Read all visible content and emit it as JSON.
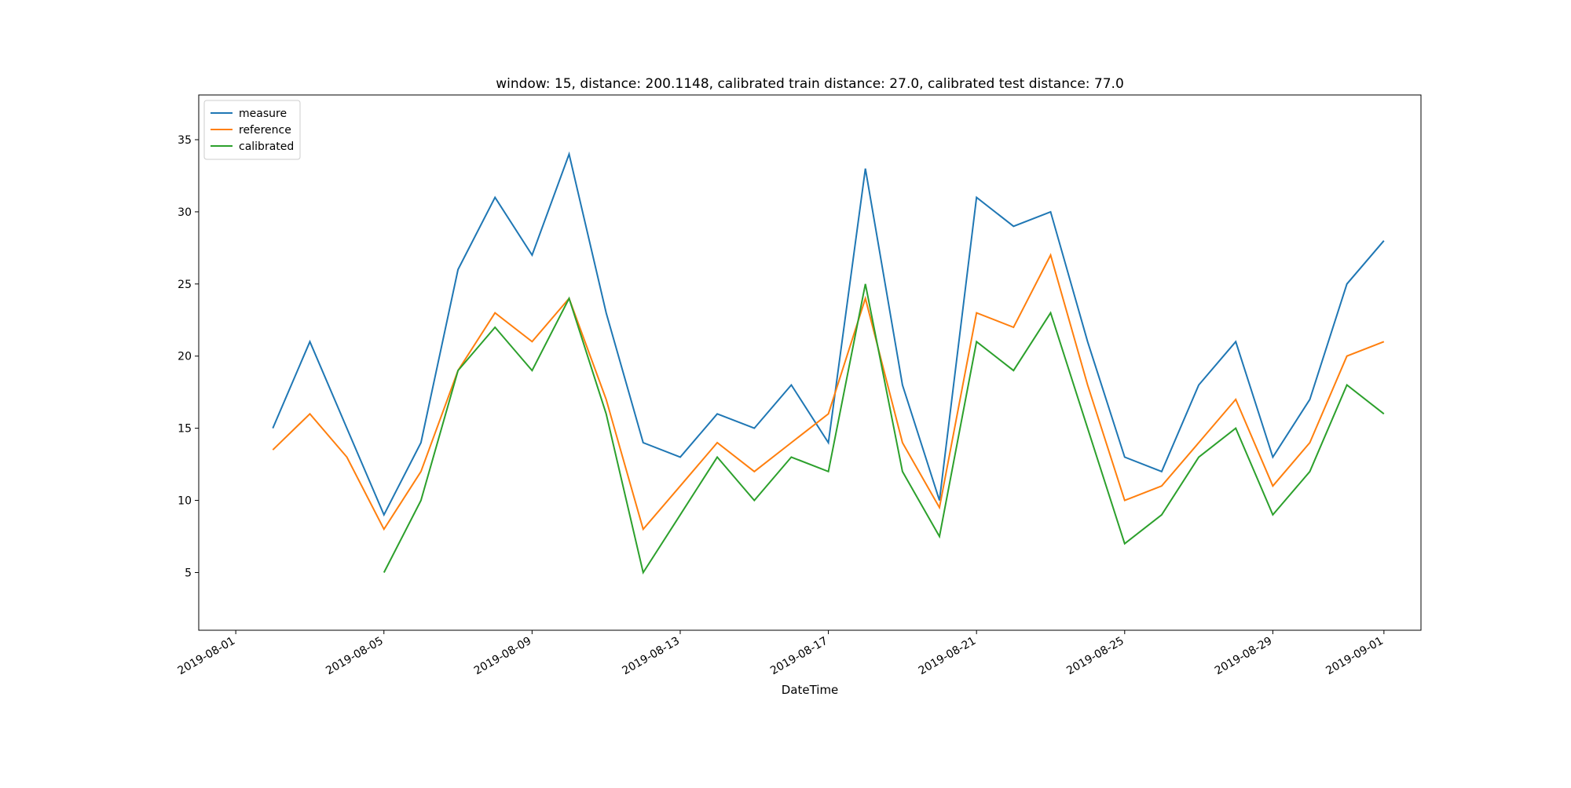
{
  "chart_data": {
    "type": "line",
    "title": "window: 15, distance: 200.1148, calibrated train distance: 27.0, calibrated test distance: 77.0",
    "xlabel": "DateTime",
    "x": [
      "2019-08-02",
      "2019-08-03",
      "2019-08-04",
      "2019-08-05",
      "2019-08-06",
      "2019-08-07",
      "2019-08-08",
      "2019-08-09",
      "2019-08-10",
      "2019-08-11",
      "2019-08-12",
      "2019-08-13",
      "2019-08-14",
      "2019-08-15",
      "2019-08-16",
      "2019-08-17",
      "2019-08-18",
      "2019-08-19",
      "2019-08-20",
      "2019-08-21",
      "2019-08-22",
      "2019-08-23",
      "2019-08-24",
      "2019-08-25",
      "2019-08-26",
      "2019-08-27",
      "2019-08-28",
      "2019-08-29",
      "2019-08-30",
      "2019-08-31",
      "2019-09-01"
    ],
    "series": [
      {
        "name": "measure",
        "color": "#1f77b4",
        "values": [
          15,
          21,
          15,
          9,
          14,
          26,
          31,
          27,
          34,
          23,
          14,
          13,
          16,
          15,
          18,
          14,
          33,
          18,
          10,
          31,
          29,
          30,
          21,
          13,
          12,
          18,
          21,
          13,
          17,
          25,
          28
        ]
      },
      {
        "name": "reference",
        "color": "#ff7f0e",
        "values": [
          13.5,
          16,
          13,
          8,
          12,
          19,
          23,
          21,
          24,
          17,
          8,
          11,
          14,
          12,
          14,
          16,
          24,
          14,
          9.5,
          23,
          22,
          27,
          18,
          10,
          11,
          14,
          17,
          11,
          14,
          20,
          21
        ]
      },
      {
        "name": "calibrated",
        "color": "#2ca02c",
        "values": [
          null,
          null,
          null,
          5,
          10,
          19,
          22,
          19,
          24,
          16,
          5,
          9,
          13,
          10,
          13,
          12,
          25,
          12,
          7.5,
          21,
          19,
          23,
          15,
          7,
          9,
          13,
          15,
          9,
          12,
          18,
          16
        ]
      }
    ],
    "xlim": [
      "2019-07-31",
      "2019-09-02"
    ],
    "xticks": [
      "2019-08-01",
      "2019-08-05",
      "2019-08-09",
      "2019-08-13",
      "2019-08-17",
      "2019-08-21",
      "2019-08-25",
      "2019-08-29",
      "2019-09-01"
    ],
    "ylim": [
      1.0,
      38.1
    ],
    "yticks": [
      5,
      10,
      15,
      20,
      25,
      30,
      35
    ],
    "legend": "upper left"
  }
}
